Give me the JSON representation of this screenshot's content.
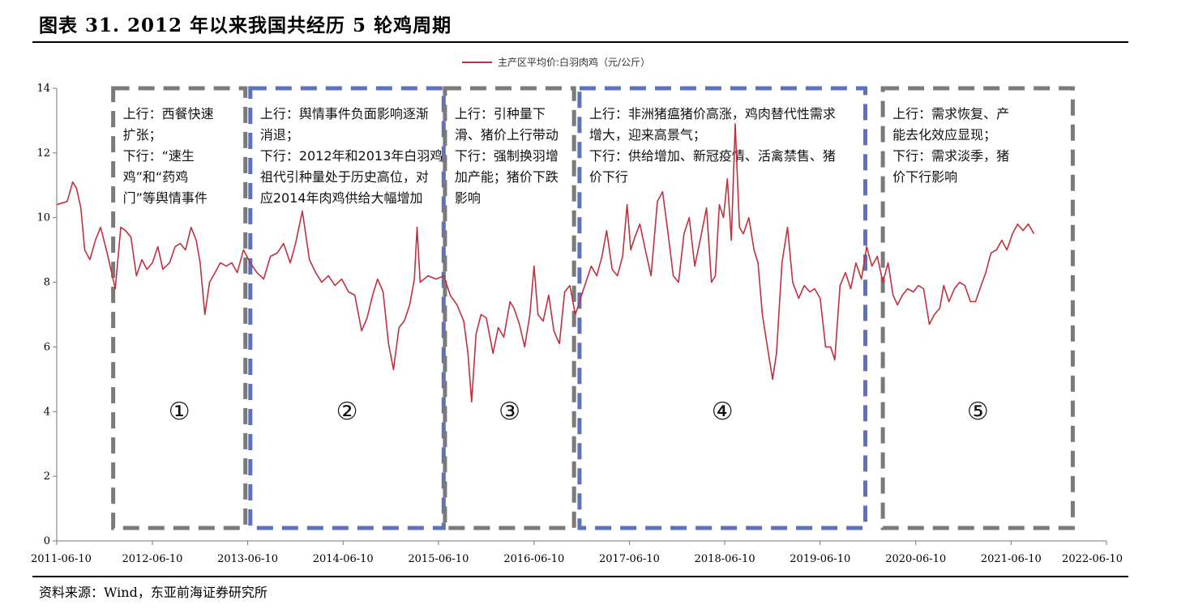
{
  "header": {
    "title": "图表 31. 2012 年以来我国共经历 5 轮鸡周期",
    "source": "资料来源：Wind，东亚前海证券研究所"
  },
  "chart_data": {
    "type": "line",
    "legend_position": "top-center",
    "grid": false,
    "series": [
      {
        "name": "主产区平均价:白羽肉鸡（元/公斤）",
        "color": "#c0313f",
        "points": [
          [
            "2011-06-10",
            10.4
          ],
          [
            "2011-07-20",
            10.5
          ],
          [
            "2011-08-10",
            11.1
          ],
          [
            "2011-08-25",
            10.9
          ],
          [
            "2011-09-10",
            10.3
          ],
          [
            "2011-09-25",
            9.0
          ],
          [
            "2011-10-15",
            8.7
          ],
          [
            "2011-11-05",
            9.3
          ],
          [
            "2011-11-25",
            9.7
          ],
          [
            "2011-12-20",
            8.9
          ],
          [
            "2012-01-20",
            7.8
          ],
          [
            "2012-02-10",
            9.7
          ],
          [
            "2012-02-28",
            9.6
          ],
          [
            "2012-03-20",
            9.4
          ],
          [
            "2012-04-10",
            8.2
          ],
          [
            "2012-05-01",
            8.7
          ],
          [
            "2012-05-20",
            8.4
          ],
          [
            "2012-06-10",
            8.6
          ],
          [
            "2012-07-01",
            9.1
          ],
          [
            "2012-07-20",
            8.4
          ],
          [
            "2012-08-15",
            8.6
          ],
          [
            "2012-09-05",
            9.1
          ],
          [
            "2012-09-25",
            9.2
          ],
          [
            "2012-10-15",
            9.0
          ],
          [
            "2012-11-05",
            9.7
          ],
          [
            "2012-11-25",
            9.3
          ],
          [
            "2012-12-10",
            8.6
          ],
          [
            "2012-12-28",
            7.0
          ],
          [
            "2013-01-15",
            8.0
          ],
          [
            "2013-02-05",
            8.3
          ],
          [
            "2013-02-25",
            8.6
          ],
          [
            "2013-03-20",
            8.5
          ],
          [
            "2013-04-10",
            8.6
          ],
          [
            "2013-05-01",
            8.3
          ],
          [
            "2013-05-25",
            9.0
          ],
          [
            "2013-06-20",
            8.6
          ],
          [
            "2013-07-15",
            8.3
          ],
          [
            "2013-08-10",
            8.1
          ],
          [
            "2013-09-05",
            8.8
          ],
          [
            "2013-10-01",
            8.9
          ],
          [
            "2013-10-25",
            9.2
          ],
          [
            "2013-11-20",
            8.6
          ],
          [
            "2013-12-10",
            9.2
          ],
          [
            "2014-01-05",
            10.2
          ],
          [
            "2014-02-01",
            8.7
          ],
          [
            "2014-02-25",
            8.3
          ],
          [
            "2014-03-20",
            8.0
          ],
          [
            "2014-04-15",
            8.2
          ],
          [
            "2014-05-10",
            7.9
          ],
          [
            "2014-06-05",
            8.1
          ],
          [
            "2014-07-01",
            7.7
          ],
          [
            "2014-07-25",
            7.6
          ],
          [
            "2014-08-20",
            6.5
          ],
          [
            "2014-09-10",
            6.9
          ],
          [
            "2014-10-01",
            7.6
          ],
          [
            "2014-10-20",
            8.1
          ],
          [
            "2014-11-10",
            7.7
          ],
          [
            "2014-12-01",
            6.1
          ],
          [
            "2014-12-20",
            5.3
          ],
          [
            "2015-01-10",
            6.6
          ],
          [
            "2015-01-30",
            6.8
          ],
          [
            "2015-02-20",
            7.3
          ],
          [
            "2015-03-10",
            8.1
          ],
          [
            "2015-03-20",
            9.7
          ],
          [
            "2015-04-01",
            8.0
          ],
          [
            "2015-05-01",
            8.2
          ],
          [
            "2015-06-01",
            8.1
          ],
          [
            "2015-07-01",
            8.2
          ],
          [
            "2015-07-25",
            7.6
          ],
          [
            "2015-08-20",
            7.3
          ],
          [
            "2015-09-15",
            6.8
          ],
          [
            "2015-10-01",
            5.8
          ],
          [
            "2015-10-15",
            4.3
          ],
          [
            "2015-11-01",
            6.4
          ],
          [
            "2015-11-20",
            7.0
          ],
          [
            "2015-12-10",
            6.9
          ],
          [
            "2016-01-05",
            5.8
          ],
          [
            "2016-01-25",
            6.6
          ],
          [
            "2016-02-15",
            6.3
          ],
          [
            "2016-03-10",
            7.4
          ],
          [
            "2016-03-25",
            7.2
          ],
          [
            "2016-04-15",
            6.7
          ],
          [
            "2016-05-05",
            6.0
          ],
          [
            "2016-05-25",
            7.0
          ],
          [
            "2016-06-10",
            8.5
          ],
          [
            "2016-06-25",
            7.0
          ],
          [
            "2016-07-15",
            6.8
          ],
          [
            "2016-08-05",
            7.6
          ],
          [
            "2016-08-25",
            6.5
          ],
          [
            "2016-09-15",
            6.1
          ],
          [
            "2016-10-05",
            7.7
          ],
          [
            "2016-10-25",
            7.9
          ],
          [
            "2016-11-15",
            7.0
          ],
          [
            "2016-12-05",
            7.5
          ],
          [
            "2016-12-25",
            8.0
          ],
          [
            "2017-01-15",
            8.5
          ],
          [
            "2017-02-05",
            8.2
          ],
          [
            "2017-02-25",
            8.8
          ],
          [
            "2017-03-15",
            9.6
          ],
          [
            "2017-04-05",
            8.4
          ],
          [
            "2017-04-25",
            8.2
          ],
          [
            "2017-05-15",
            8.8
          ],
          [
            "2017-06-01",
            10.4
          ],
          [
            "2017-06-15",
            9.0
          ],
          [
            "2017-07-01",
            9.4
          ],
          [
            "2017-07-20",
            9.8
          ],
          [
            "2017-08-10",
            9.0
          ],
          [
            "2017-09-01",
            8.2
          ],
          [
            "2017-09-25",
            10.5
          ],
          [
            "2017-10-15",
            10.8
          ],
          [
            "2017-11-05",
            9.5
          ],
          [
            "2017-11-25",
            8.2
          ],
          [
            "2017-12-15",
            8.0
          ],
          [
            "2018-01-05",
            9.5
          ],
          [
            "2018-01-25",
            10.0
          ],
          [
            "2018-02-15",
            8.5
          ],
          [
            "2018-03-10",
            9.4
          ],
          [
            "2018-04-01",
            10.3
          ],
          [
            "2018-04-20",
            8.0
          ],
          [
            "2018-05-05",
            8.2
          ],
          [
            "2018-05-20",
            10.4
          ],
          [
            "2018-06-05",
            10.0
          ],
          [
            "2018-06-20",
            11.2
          ],
          [
            "2018-07-05",
            9.3
          ],
          [
            "2018-07-20",
            12.9
          ],
          [
            "2018-08-05",
            9.7
          ],
          [
            "2018-08-20",
            9.5
          ],
          [
            "2018-09-10",
            10.0
          ],
          [
            "2018-09-30",
            9.0
          ],
          [
            "2018-10-15",
            8.6
          ],
          [
            "2018-11-01",
            7.0
          ],
          [
            "2018-11-20",
            6.0
          ],
          [
            "2018-12-10",
            5.0
          ],
          [
            "2018-12-25",
            5.8
          ],
          [
            "2019-01-15",
            8.6
          ],
          [
            "2019-02-05",
            9.7
          ],
          [
            "2019-02-25",
            8.0
          ],
          [
            "2019-03-20",
            7.5
          ],
          [
            "2019-04-10",
            7.9
          ],
          [
            "2019-05-01",
            7.7
          ],
          [
            "2019-05-20",
            7.8
          ],
          [
            "2019-06-10",
            7.5
          ],
          [
            "2019-07-01",
            6.0
          ],
          [
            "2019-07-20",
            6.0
          ],
          [
            "2019-08-05",
            5.6
          ],
          [
            "2019-08-25",
            7.9
          ],
          [
            "2019-09-15",
            8.3
          ],
          [
            "2019-10-05",
            7.8
          ],
          [
            "2019-10-25",
            8.6
          ],
          [
            "2019-11-15",
            8.1
          ],
          [
            "2019-12-05",
            9.1
          ],
          [
            "2019-12-25",
            8.5
          ],
          [
            "2020-01-15",
            8.8
          ],
          [
            "2020-02-05",
            8.0
          ],
          [
            "2020-02-25",
            8.6
          ],
          [
            "2020-03-15",
            7.6
          ],
          [
            "2020-04-01",
            7.3
          ],
          [
            "2020-04-20",
            7.6
          ],
          [
            "2020-05-10",
            7.8
          ],
          [
            "2020-06-01",
            7.7
          ],
          [
            "2020-06-20",
            7.9
          ],
          [
            "2020-07-10",
            7.8
          ],
          [
            "2020-08-01",
            6.7
          ],
          [
            "2020-08-20",
            7.0
          ],
          [
            "2020-09-10",
            7.2
          ],
          [
            "2020-09-25",
            7.9
          ],
          [
            "2020-10-15",
            7.4
          ],
          [
            "2020-11-05",
            7.8
          ],
          [
            "2020-11-25",
            8.0
          ],
          [
            "2020-12-15",
            7.9
          ],
          [
            "2021-01-05",
            7.4
          ],
          [
            "2021-01-25",
            7.4
          ],
          [
            "2021-02-15",
            7.9
          ],
          [
            "2021-03-05",
            8.3
          ],
          [
            "2021-03-25",
            8.9
          ],
          [
            "2021-04-15",
            9.0
          ],
          [
            "2021-05-05",
            9.3
          ],
          [
            "2021-05-25",
            9.0
          ],
          [
            "2021-06-15",
            9.5
          ],
          [
            "2021-07-05",
            9.8
          ],
          [
            "2021-07-25",
            9.6
          ],
          [
            "2021-08-15",
            9.8
          ],
          [
            "2021-09-05",
            9.5
          ]
        ]
      }
    ],
    "xlim": [
      "2011-06-10",
      "2022-06-10"
    ],
    "ylim": [
      0,
      14
    ],
    "yticks": [
      0,
      2,
      4,
      6,
      8,
      10,
      12,
      14
    ],
    "xticks": [
      "2011-06-10",
      "2012-06-10",
      "2013-06-10",
      "2014-06-10",
      "2015-06-10",
      "2016-06-10",
      "2017-06-10",
      "2018-06-10",
      "2019-06-10",
      "2020-06-10",
      "2021-06-10",
      "2022-06-10"
    ],
    "periods": [
      {
        "id": "1",
        "marker": "①",
        "style": "gray",
        "start": "2012-01-12",
        "end": "2013-06-01",
        "text": [
          "上行：西餐快速",
          "扩张；",
          "下行：“速生",
          "鸡”和“药鸡",
          "门”等舆情事件"
        ]
      },
      {
        "id": "2",
        "marker": "②",
        "style": "blue",
        "start": "2013-06-20",
        "end": "2015-06-30",
        "text": [
          "上行：舆情事件负面影响逐渐",
          "消退；",
          "下行：2012年和2013年白羽鸡",
          "祖代引种量处于历史高位，对",
          "应2014年肉鸡供给大幅增加"
        ]
      },
      {
        "id": "3",
        "marker": "③",
        "style": "gray",
        "start": "2015-07-05",
        "end": "2016-11-10",
        "text": [
          "上行：引种量下",
          "滑、猪价上行带动",
          "下行：强制换羽增",
          "加产能；猪价下跌",
          "影响"
        ]
      },
      {
        "id": "4",
        "marker": "④",
        "style": "blue",
        "start": "2016-12-01",
        "end": "2019-11-30",
        "text": [
          "上行：非洲猪瘟猪价高涨，鸡肉替代性需求",
          "增大，迎来高景气；",
          "下行：供给增加、新冠疫情、活禽禁售、猪",
          "价下行"
        ]
      },
      {
        "id": "5",
        "marker": "⑤",
        "style": "gray",
        "start": "2020-02-05",
        "end": "2022-02-01",
        "text": [
          "上行：需求恢复、产",
          "能去化效应显现；",
          "下行：需求淡季，猪",
          "价下行影响"
        ]
      }
    ]
  }
}
